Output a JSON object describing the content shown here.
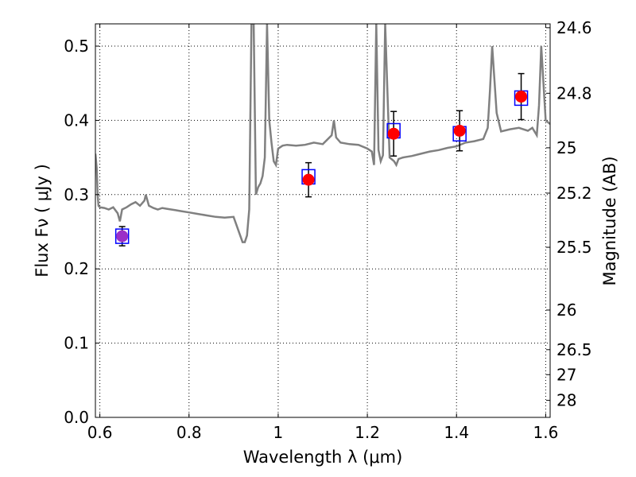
{
  "chart_data": {
    "type": "line",
    "xlabel": "Wavelength  λ (μm)",
    "ylabel": "Flux  Fν  ( μJy )",
    "y2label": "Magnitude (AB)",
    "xlim": [
      0.59,
      1.61
    ],
    "ylim": [
      0.0,
      0.53
    ],
    "grid": true,
    "x_ticks": [
      0.6,
      0.8,
      1.0,
      1.2,
      1.4,
      1.6
    ],
    "x_tick_labels": [
      "0.6",
      "0.8",
      "1",
      "1.2",
      "1.4",
      "1.6"
    ],
    "y_ticks": [
      0.0,
      0.1,
      0.2,
      0.3,
      0.4,
      0.5
    ],
    "y_tick_labels": [
      "0.0",
      "0.1",
      "0.2",
      "0.3",
      "0.4",
      "0.5"
    ],
    "mag_ticks": [
      24.6,
      24.8,
      25,
      25.2,
      25.5,
      26,
      26.5,
      27,
      28
    ],
    "mag_tick_labels": [
      "24.6",
      "24.8",
      "25",
      "25.2",
      "25.5",
      "26",
      "26.5",
      "27",
      "28"
    ],
    "colors": {
      "spectrum": "#808080",
      "observed": "#ff0000",
      "model_box": "#0000ff",
      "first_point": "#9b30c8",
      "errorbar": "#000000",
      "grid": "#000000"
    },
    "series": [
      {
        "kind": "model_spectrum",
        "x": [
          0.59,
          0.593,
          0.595,
          0.597,
          0.6,
          0.61,
          0.62,
          0.63,
          0.64,
          0.645,
          0.65,
          0.66,
          0.67,
          0.68,
          0.69,
          0.7,
          0.703,
          0.71,
          0.72,
          0.73,
          0.74,
          0.75,
          0.76,
          0.77,
          0.78,
          0.8,
          0.82,
          0.84,
          0.86,
          0.88,
          0.9,
          0.92,
          0.925,
          0.93,
          0.935,
          0.94,
          0.945,
          0.95,
          0.955,
          0.96,
          0.965,
          0.97,
          0.975,
          0.98,
          0.985,
          0.99,
          0.995,
          1.0,
          1.01,
          1.02,
          1.04,
          1.06,
          1.08,
          1.1,
          1.12,
          1.125,
          1.13,
          1.14,
          1.16,
          1.18,
          1.2,
          1.21,
          1.215,
          1.22,
          1.225,
          1.23,
          1.235,
          1.24,
          1.25,
          1.26,
          1.265,
          1.27,
          1.28,
          1.3,
          1.32,
          1.34,
          1.36,
          1.38,
          1.4,
          1.42,
          1.44,
          1.46,
          1.47,
          1.475,
          1.48,
          1.49,
          1.5,
          1.52,
          1.54,
          1.56,
          1.57,
          1.58,
          1.585,
          1.59,
          1.6,
          1.61
        ],
        "y": [
          0.355,
          0.335,
          0.3,
          0.285,
          0.283,
          0.282,
          0.28,
          0.283,
          0.275,
          0.264,
          0.28,
          0.283,
          0.287,
          0.29,
          0.285,
          0.292,
          0.3,
          0.285,
          0.282,
          0.28,
          0.282,
          0.281,
          0.28,
          0.279,
          0.278,
          0.276,
          0.274,
          0.272,
          0.27,
          0.269,
          0.27,
          0.236,
          0.236,
          0.245,
          0.28,
          0.53,
          0.53,
          0.3,
          0.31,
          0.315,
          0.325,
          0.35,
          0.53,
          0.4,
          0.37,
          0.345,
          0.34,
          0.362,
          0.366,
          0.367,
          0.366,
          0.367,
          0.37,
          0.368,
          0.38,
          0.4,
          0.377,
          0.37,
          0.368,
          0.367,
          0.362,
          0.358,
          0.34,
          0.53,
          0.36,
          0.345,
          0.353,
          0.53,
          0.35,
          0.345,
          0.34,
          0.348,
          0.35,
          0.352,
          0.355,
          0.358,
          0.36,
          0.363,
          0.365,
          0.37,
          0.372,
          0.375,
          0.39,
          0.44,
          0.5,
          0.41,
          0.385,
          0.388,
          0.39,
          0.386,
          0.39,
          0.38,
          0.42,
          0.5,
          0.4,
          0.395
        ]
      },
      {
        "kind": "photometry",
        "points": [
          {
            "x": 0.65,
            "y": 0.244,
            "yerr": 0.013,
            "model_y": 0.244
          },
          {
            "x": 1.068,
            "y": 0.32,
            "yerr": 0.023,
            "model_y": 0.324
          },
          {
            "x": 1.259,
            "y": 0.382,
            "yerr": 0.03,
            "model_y": 0.386
          },
          {
            "x": 1.407,
            "y": 0.386,
            "yerr": 0.027,
            "model_y": 0.382
          },
          {
            "x": 1.545,
            "y": 0.432,
            "yerr": 0.031,
            "model_y": 0.43
          }
        ]
      }
    ]
  }
}
